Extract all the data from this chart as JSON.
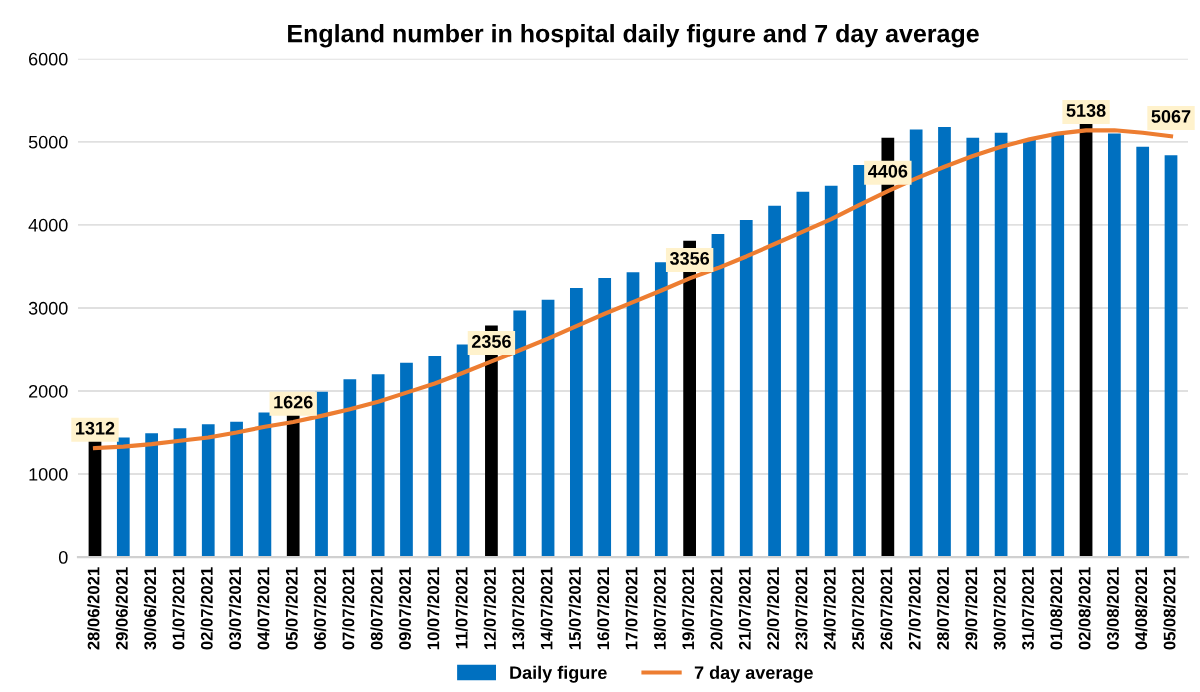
{
  "chart_data": {
    "type": "bar",
    "title": "England number in hospital daily figure and 7 day average",
    "categories": [
      "28/06/2021",
      "29/06/2021",
      "30/06/2021",
      "01/07/2021",
      "02/07/2021",
      "03/07/2021",
      "04/07/2021",
      "05/07/2021",
      "06/07/2021",
      "07/07/2021",
      "08/07/2021",
      "09/07/2021",
      "10/07/2021",
      "11/07/2021",
      "12/07/2021",
      "13/07/2021",
      "14/07/2021",
      "15/07/2021",
      "16/07/2021",
      "17/07/2021",
      "18/07/2021",
      "19/07/2021",
      "20/07/2021",
      "21/07/2021",
      "22/07/2021",
      "23/07/2021",
      "24/07/2021",
      "25/07/2021",
      "26/07/2021",
      "27/07/2021",
      "28/07/2021",
      "29/07/2021",
      "30/07/2021",
      "31/07/2021",
      "01/08/2021",
      "02/08/2021",
      "03/08/2021",
      "04/08/2021",
      "05/08/2021"
    ],
    "series": [
      {
        "name": "Daily figure",
        "color": "#0070c0",
        "colors": [
          "#000000",
          "#0070c0",
          "#0070c0",
          "#0070c0",
          "#0070c0",
          "#0070c0",
          "#0070c0",
          "#000000",
          "#0070c0",
          "#0070c0",
          "#0070c0",
          "#0070c0",
          "#0070c0",
          "#0070c0",
          "#000000",
          "#0070c0",
          "#0070c0",
          "#0070c0",
          "#0070c0",
          "#0070c0",
          "#0070c0",
          "#000000",
          "#0070c0",
          "#0070c0",
          "#0070c0",
          "#0070c0",
          "#0070c0",
          "#0070c0",
          "#000000",
          "#0070c0",
          "#0070c0",
          "#0070c0",
          "#0070c0",
          "#0070c0",
          "#0070c0",
          "#000000",
          "#0070c0",
          "#0070c0",
          "#0070c0"
        ],
        "values": [
          1400,
          1440,
          1490,
          1550,
          1600,
          1630,
          1740,
          1710,
          1990,
          2140,
          2200,
          2340,
          2420,
          2560,
          2790,
          2970,
          3100,
          3240,
          3360,
          3430,
          3550,
          3810,
          3890,
          4060,
          4230,
          4400,
          4470,
          4720,
          5050,
          5150,
          5180,
          5050,
          5110,
          5030,
          5090,
          5220,
          5100,
          4940,
          4840
        ]
      },
      {
        "name": "7 day average",
        "type": "line",
        "color": "#ed7d31",
        "values": [
          1312,
          1330,
          1360,
          1400,
          1440,
          1500,
          1570,
          1626,
          1700,
          1780,
          1870,
          1980,
          2090,
          2220,
          2356,
          2490,
          2630,
          2780,
          2930,
          3070,
          3210,
          3356,
          3480,
          3620,
          3770,
          3920,
          4070,
          4240,
          4406,
          4560,
          4700,
          4830,
          4940,
          5030,
          5100,
          5138,
          5140,
          5110,
          5067
        ],
        "value_labels": [
          "1312",
          null,
          null,
          null,
          null,
          null,
          null,
          "1626",
          null,
          null,
          null,
          null,
          null,
          null,
          "2356",
          null,
          null,
          null,
          null,
          null,
          null,
          "3356",
          null,
          null,
          null,
          null,
          null,
          null,
          "4406",
          null,
          null,
          null,
          null,
          null,
          null,
          "5138",
          null,
          null,
          "5067"
        ]
      }
    ],
    "ylim": [
      0,
      6000
    ],
    "yticks": [
      0,
      1000,
      2000,
      3000,
      4000,
      5000,
      6000
    ],
    "grid": "y",
    "legend": "bottom",
    "marker": "none"
  }
}
